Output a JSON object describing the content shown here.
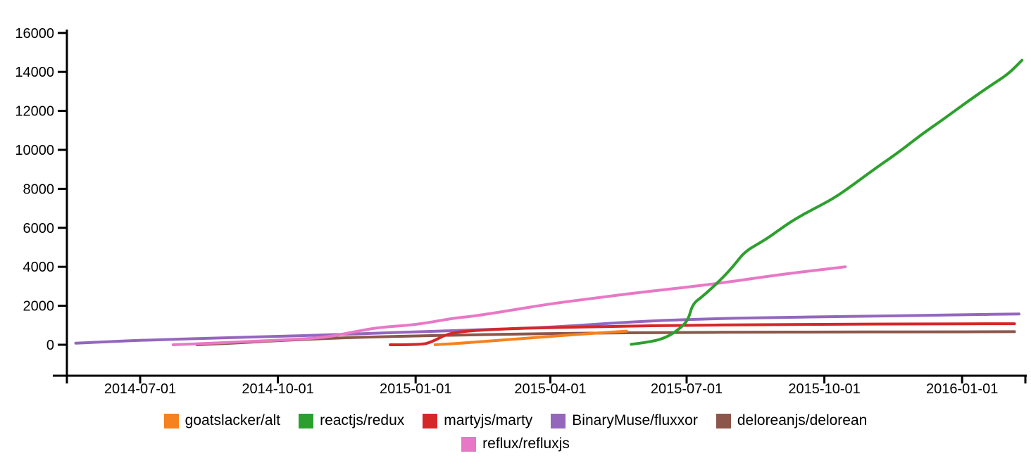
{
  "chart_data": {
    "type": "line",
    "title": "",
    "xlabel": "",
    "ylabel": "",
    "background": "#ffffff",
    "axis_color": "#000000",
    "grid": false,
    "legend_position": "bottom",
    "line_width": 4,
    "x_axis": {
      "ticks": [
        "2014-07-01",
        "2014-10-01",
        "2015-01-01",
        "2015-04-01",
        "2015-07-01",
        "2015-10-01",
        "2016-01-01"
      ],
      "range": [
        "2014-05-13",
        "2016-02-14"
      ]
    },
    "y_axis": {
      "ticks": [
        0,
        2000,
        4000,
        6000,
        8000,
        10000,
        12000,
        14000,
        16000
      ],
      "range": [
        0,
        16000
      ]
    },
    "z_order": [
      3,
      4,
      0,
      2,
      5,
      1
    ],
    "series": [
      {
        "name": "goatslacker/alt",
        "color": "#f5821f",
        "points": [
          [
            "2015-01-14",
            0
          ],
          [
            "2015-02-01",
            80
          ],
          [
            "2015-03-01",
            250
          ],
          [
            "2015-04-01",
            430
          ],
          [
            "2015-04-25",
            560
          ],
          [
            "2015-05-22",
            700
          ]
        ]
      },
      {
        "name": "reactjs/redux",
        "color": "#2ca02c",
        "points": [
          [
            "2015-05-25",
            20
          ],
          [
            "2015-06-08",
            150
          ],
          [
            "2015-06-18",
            400
          ],
          [
            "2015-06-26",
            800
          ],
          [
            "2015-07-02",
            1250
          ],
          [
            "2015-07-05",
            2100
          ],
          [
            "2015-07-12",
            2500
          ],
          [
            "2015-07-24",
            3350
          ],
          [
            "2015-08-02",
            4100
          ],
          [
            "2015-08-09",
            4800
          ],
          [
            "2015-08-23",
            5400
          ],
          [
            "2015-09-08",
            6300
          ],
          [
            "2015-09-22",
            6900
          ],
          [
            "2015-10-07",
            7500
          ],
          [
            "2015-10-20",
            8200
          ],
          [
            "2015-11-05",
            9100
          ],
          [
            "2015-11-20",
            9900
          ],
          [
            "2015-12-05",
            10800
          ],
          [
            "2015-12-20",
            11600
          ],
          [
            "2016-01-05",
            12500
          ],
          [
            "2016-01-20",
            13300
          ],
          [
            "2016-02-01",
            13900
          ],
          [
            "2016-02-10",
            14600
          ]
        ]
      },
      {
        "name": "martyjs/marty",
        "color": "#d62728",
        "points": [
          [
            "2014-12-15",
            0
          ],
          [
            "2015-01-05",
            0
          ],
          [
            "2015-01-12",
            150
          ],
          [
            "2015-01-22",
            560
          ],
          [
            "2015-02-05",
            720
          ],
          [
            "2015-03-08",
            830
          ],
          [
            "2015-04-01",
            880
          ],
          [
            "2015-05-15",
            950
          ],
          [
            "2015-07-01",
            1000
          ],
          [
            "2015-08-15",
            1030
          ],
          [
            "2015-10-01",
            1050
          ],
          [
            "2015-12-01",
            1070
          ],
          [
            "2016-02-05",
            1080
          ]
        ]
      },
      {
        "name": "BinaryMuse/fluxxor",
        "color": "#9467bd",
        "points": [
          [
            "2014-05-19",
            80
          ],
          [
            "2014-06-10",
            160
          ],
          [
            "2014-07-01",
            230
          ],
          [
            "2014-08-01",
            300
          ],
          [
            "2014-09-01",
            370
          ],
          [
            "2014-10-01",
            430
          ],
          [
            "2014-11-01",
            500
          ],
          [
            "2014-12-01",
            580
          ],
          [
            "2015-01-01",
            660
          ],
          [
            "2015-02-01",
            740
          ],
          [
            "2015-03-01",
            810
          ],
          [
            "2015-04-01",
            900
          ],
          [
            "2015-05-01",
            1050
          ],
          [
            "2015-06-01",
            1200
          ],
          [
            "2015-07-01",
            1300
          ],
          [
            "2015-08-01",
            1360
          ],
          [
            "2015-09-01",
            1400
          ],
          [
            "2015-10-01",
            1440
          ],
          [
            "2015-11-01",
            1470
          ],
          [
            "2015-12-01",
            1500
          ],
          [
            "2016-01-01",
            1540
          ],
          [
            "2016-02-08",
            1580
          ]
        ]
      },
      {
        "name": "deloreanjs/delorean",
        "color": "#8c564b",
        "points": [
          [
            "2014-08-08",
            0
          ],
          [
            "2014-09-01",
            80
          ],
          [
            "2014-10-01",
            215
          ],
          [
            "2014-11-01",
            320
          ],
          [
            "2014-12-01",
            400
          ],
          [
            "2015-01-01",
            450
          ],
          [
            "2015-02-01",
            500
          ],
          [
            "2015-03-01",
            540
          ],
          [
            "2015-04-01",
            570
          ],
          [
            "2015-05-01",
            600
          ],
          [
            "2015-06-01",
            620
          ],
          [
            "2015-07-01",
            630
          ],
          [
            "2015-08-15",
            645
          ],
          [
            "2015-10-01",
            655
          ],
          [
            "2015-12-01",
            660
          ],
          [
            "2016-02-05",
            670
          ]
        ]
      },
      {
        "name": "reflux/refluxjs",
        "color": "#e878c6",
        "points": [
          [
            "2014-07-23",
            0
          ],
          [
            "2014-08-15",
            70
          ],
          [
            "2014-09-15",
            180
          ],
          [
            "2014-10-01",
            235
          ],
          [
            "2014-11-01",
            360
          ],
          [
            "2014-11-20",
            650
          ],
          [
            "2014-12-08",
            900
          ],
          [
            "2015-01-01",
            1020
          ],
          [
            "2015-01-25",
            1350
          ],
          [
            "2015-02-10",
            1480
          ],
          [
            "2015-03-08",
            1800
          ],
          [
            "2015-04-01",
            2100
          ],
          [
            "2015-05-01",
            2400
          ],
          [
            "2015-06-01",
            2700
          ],
          [
            "2015-07-01",
            2950
          ],
          [
            "2015-08-01",
            3250
          ],
          [
            "2015-09-01",
            3600
          ],
          [
            "2015-10-01",
            3870
          ],
          [
            "2015-10-15",
            4000
          ]
        ]
      }
    ]
  }
}
